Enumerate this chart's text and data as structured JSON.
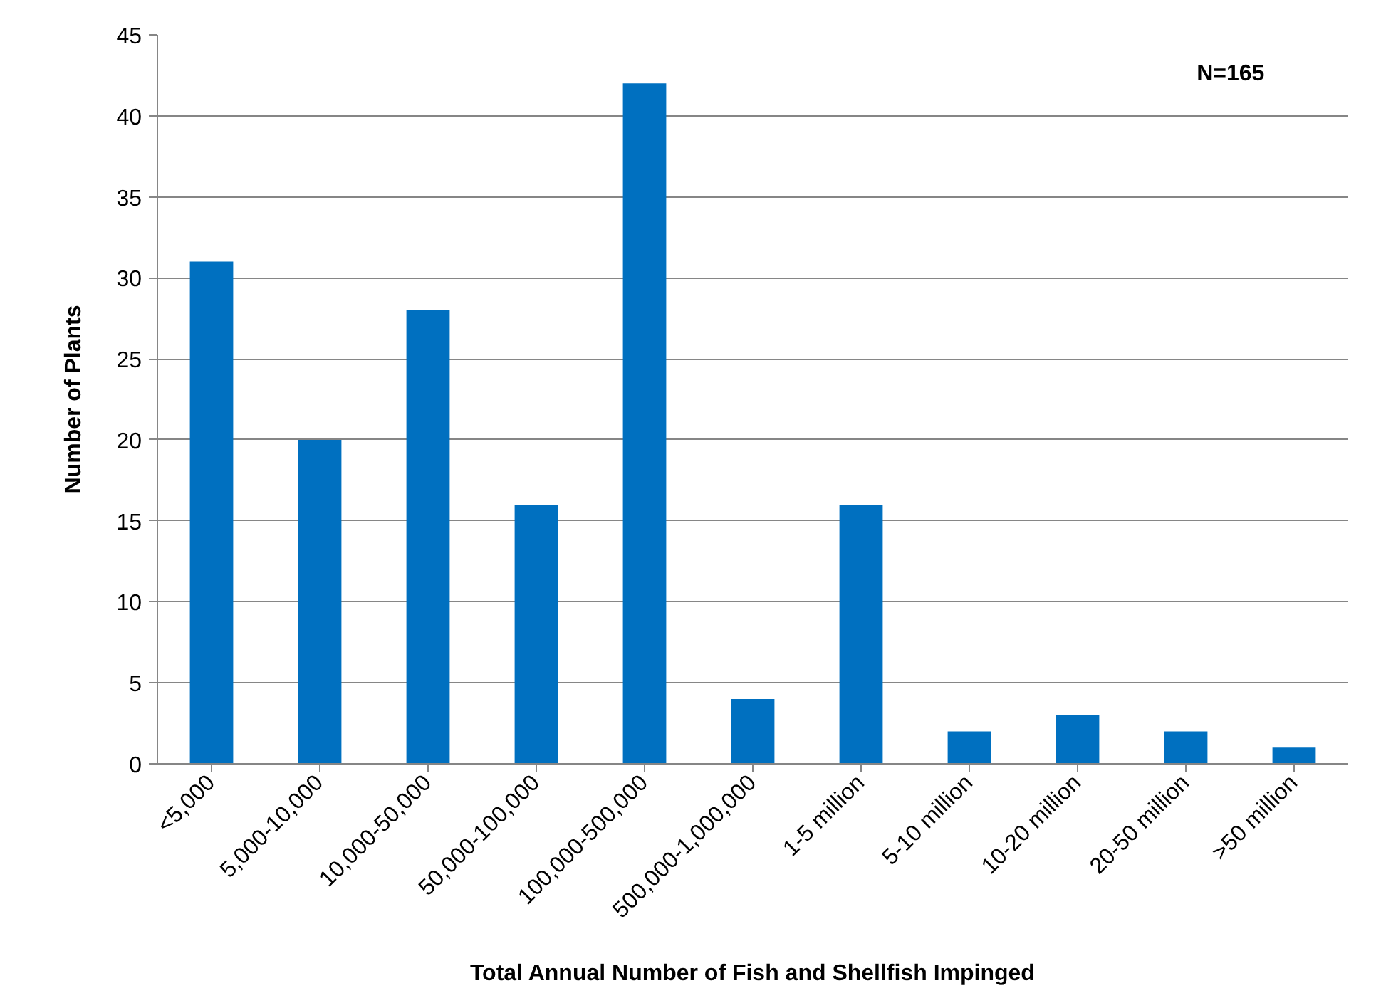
{
  "chart_data": {
    "type": "bar",
    "xlabel": "Total Annual Number of Fish and Shellfish Impinged",
    "ylabel": "Number of Plants",
    "categories": [
      "<5,000",
      "5,000-10,000",
      "10,000-50,000",
      "50,000-100,000",
      "100,000-500,000",
      "500,000-1,000,000",
      "1-5 million",
      "5-10 million",
      "10-20 million",
      "20-50 million",
      ">50 million"
    ],
    "values": [
      31,
      20,
      28,
      16,
      42,
      4,
      16,
      2,
      3,
      2,
      1
    ],
    "color": "#0070c0",
    "ylim": [
      0,
      45
    ],
    "yticks": [
      0,
      5,
      10,
      15,
      20,
      25,
      30,
      35,
      40,
      45
    ],
    "grid": "y",
    "annotations": [
      "N=165"
    ]
  }
}
